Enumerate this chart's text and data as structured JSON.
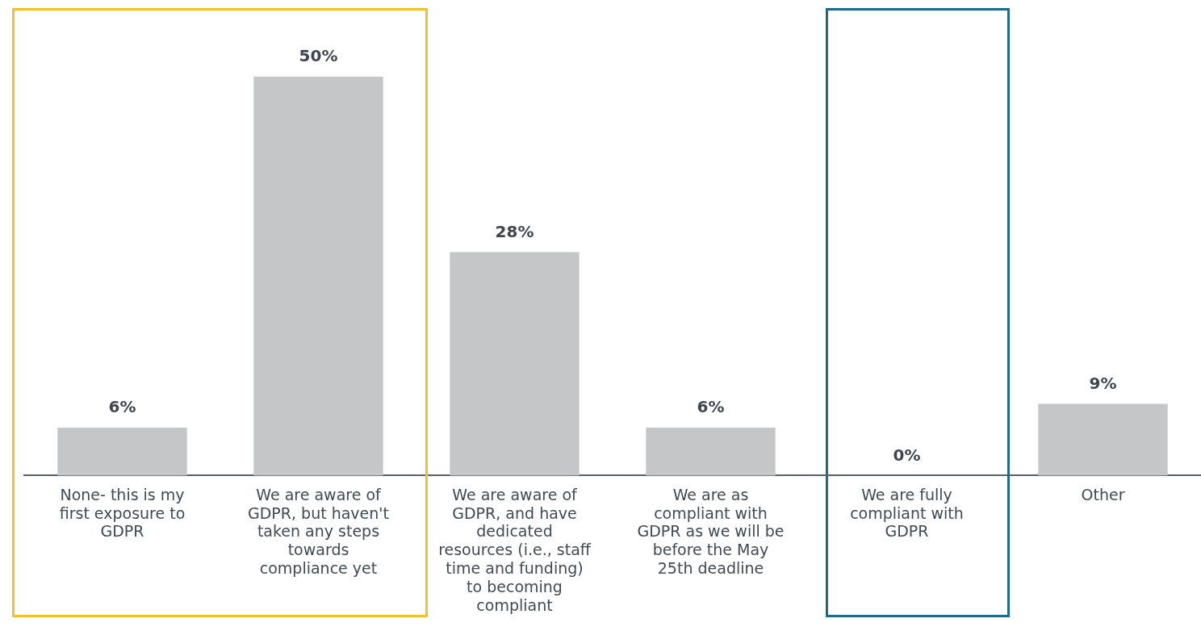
{
  "chart_data": {
    "type": "bar",
    "categories": [
      "None- this is my first exposure to GDPR",
      "We are aware of GDPR, but haven't taken any steps towards compliance yet",
      "We are aware of GDPR, and have dedicated resources (i.e., staff time and funding) to becoming compliant",
      "We are as compliant with GDPR as we will be before the May 25th deadline",
      "We are fully compliant with GDPR",
      "Other"
    ],
    "values": [
      6,
      50,
      28,
      6,
      0,
      9
    ],
    "value_labels": [
      "6%",
      "50%",
      "28%",
      "6%",
      "0%",
      "9%"
    ],
    "color": "#c4c6c8",
    "grid": false,
    "legend": false
  }
}
